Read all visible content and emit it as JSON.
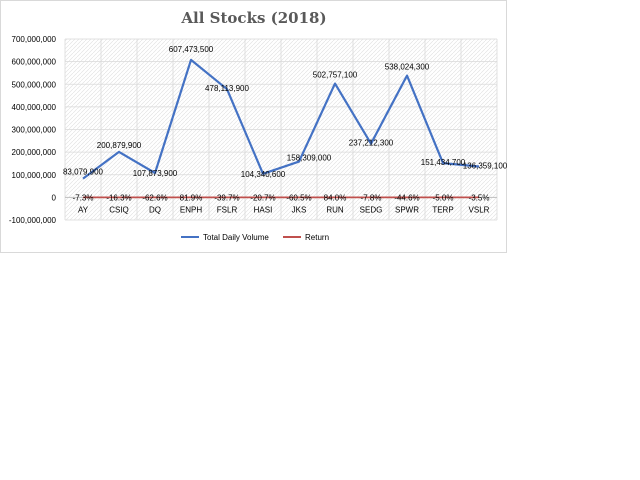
{
  "chart_data": {
    "type": "line",
    "title": "All Stocks (2018)",
    "xlabel": "",
    "ylabel": "",
    "categories": [
      "AY",
      "CSIQ",
      "DQ",
      "ENPH",
      "FSLR",
      "HASI",
      "JKS",
      "RUN",
      "SEDG",
      "SPWR",
      "TERP",
      "VSLR"
    ],
    "ylim": [
      -100000000,
      700000000
    ],
    "yticks": [
      700000000,
      600000000,
      500000000,
      400000000,
      300000000,
      200000000,
      100000000,
      0,
      -100000000
    ],
    "ytick_labels": [
      "700,000,000",
      "600,000,000",
      "500,000,000",
      "400,000,000",
      "300,000,000",
      "200,000,000",
      "100,000,000",
      "0",
      "-100,000,000"
    ],
    "grid": true,
    "legend_position": "bottom",
    "series": [
      {
        "name": "Total Daily Volume",
        "color": "#4472c4",
        "values": [
          83079900,
          200879900,
          107873900,
          607473500,
          478113900,
          104340600,
          158309000,
          502757100,
          237212300,
          538024300,
          151434700,
          136359100
        ],
        "labels": [
          "83,079,900",
          "200,879,900",
          "107,873,900",
          "607,473,500",
          "478,113,900",
          "104,340,600",
          "158,309,000",
          "502,757,100",
          "237,212,300",
          "538,024,300",
          "151,434,700",
          "136,359,100"
        ]
      },
      {
        "name": "Return",
        "color": "#c0504d",
        "values": [
          -0.073,
          -0.163,
          -0.626,
          0.819,
          -0.397,
          -0.207,
          -0.605,
          0.84,
          -0.078,
          -0.446,
          -0.05,
          -0.035
        ],
        "labels": [
          "-7.3%",
          "-16.3%",
          "-62.6%",
          "81.9%",
          "-39.7%",
          "-20.7%",
          "-60.5%",
          "84.0%",
          "-7.8%",
          "-44.6%",
          "-5.0%",
          "-3.5%"
        ]
      }
    ]
  }
}
